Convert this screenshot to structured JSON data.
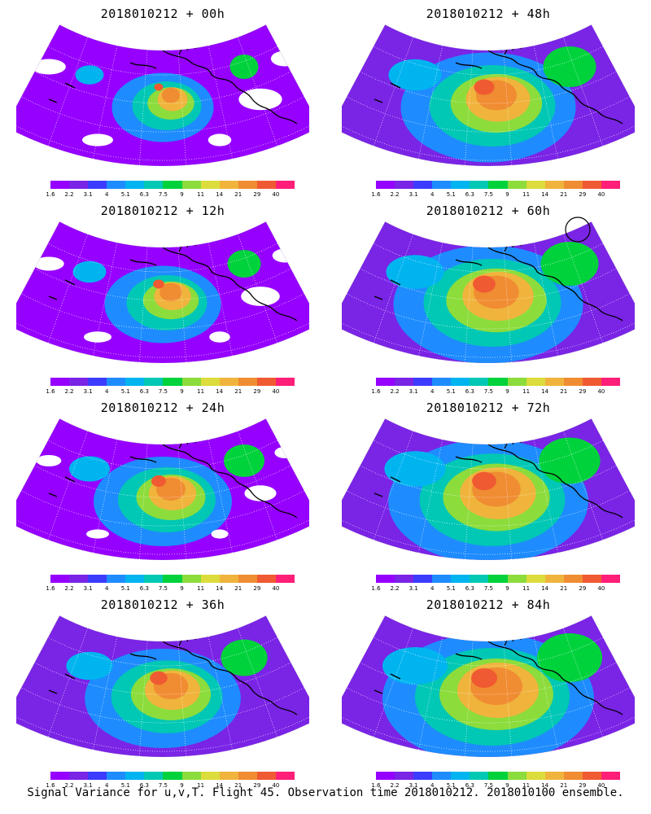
{
  "panels": [
    {
      "title": "2018010212 + 00h",
      "intensity": 0.25,
      "has_circle": false
    },
    {
      "title": "2018010212 + 48h",
      "intensity": 0.75,
      "has_circle": false
    },
    {
      "title": "2018010212 + 12h",
      "intensity": 0.35,
      "has_circle": false
    },
    {
      "title": "2018010212 + 60h",
      "intensity": 0.85,
      "has_circle": true
    },
    {
      "title": "2018010212 + 24h",
      "intensity": 0.5,
      "has_circle": false
    },
    {
      "title": "2018010212 + 72h",
      "intensity": 0.92,
      "has_circle": false
    },
    {
      "title": "2018010212 + 36h",
      "intensity": 0.62,
      "has_circle": false
    },
    {
      "title": "2018010212 + 84h",
      "intensity": 1.0,
      "has_circle": false
    }
  ],
  "colorbar": {
    "labels": [
      "1.6",
      "2.2",
      "3.1",
      "4",
      "5.1",
      "6.3",
      "7.5",
      "9",
      "11",
      "14",
      "21",
      "29",
      "40"
    ],
    "colors": [
      "#9600ff",
      "#7a24e6",
      "#3c3cff",
      "#1e8cff",
      "#00b4f0",
      "#00c8b4",
      "#00d23c",
      "#8cdc3c",
      "#dcdc3c",
      "#f0b43c",
      "#f08c32",
      "#f05a32",
      "#ff1e78"
    ]
  },
  "footer": "Signal Variance for u,v,T. Flight 45. Observation time 2018010212. 2018010100 ensemble."
}
